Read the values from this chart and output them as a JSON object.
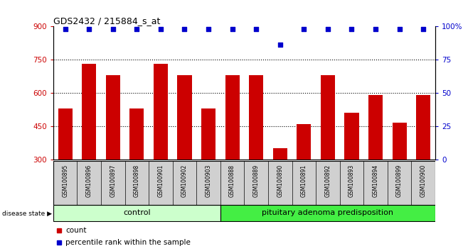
{
  "title": "GDS2432 / 215884_s_at",
  "samples": [
    "GSM100895",
    "GSM100896",
    "GSM100897",
    "GSM100898",
    "GSM100901",
    "GSM100902",
    "GSM100903",
    "GSM100888",
    "GSM100889",
    "GSM100890",
    "GSM100891",
    "GSM100892",
    "GSM100893",
    "GSM100894",
    "GSM100899",
    "GSM100900"
  ],
  "bar_values": [
    530,
    730,
    680,
    530,
    730,
    680,
    530,
    680,
    680,
    350,
    460,
    680,
    510,
    590,
    465,
    590
  ],
  "percentile_values": [
    98,
    98,
    98,
    98,
    98,
    98,
    98,
    98,
    98,
    86,
    98,
    98,
    98,
    98,
    98,
    98
  ],
  "bar_color": "#cc0000",
  "percentile_color": "#0000cc",
  "control_count": 7,
  "disease_count": 9,
  "control_label": "control",
  "disease_label": "pituitary adenoma predisposition",
  "control_bg": "#ccffcc",
  "disease_bg": "#44ee44",
  "sample_bg": "#d0d0d0",
  "ylim_left": [
    300,
    900
  ],
  "ylim_right": [
    0,
    100
  ],
  "yticks_left": [
    300,
    450,
    600,
    750,
    900
  ],
  "yticks_right": [
    0,
    25,
    50,
    75,
    100
  ],
  "ytick_labels_right": [
    "0",
    "25",
    "50",
    "75",
    "100%"
  ],
  "legend_count_label": "count",
  "legend_percentile_label": "percentile rank within the sample",
  "disease_state_label": "disease state",
  "background_color": "#ffffff",
  "grid_lines": [
    450,
    600,
    750
  ]
}
